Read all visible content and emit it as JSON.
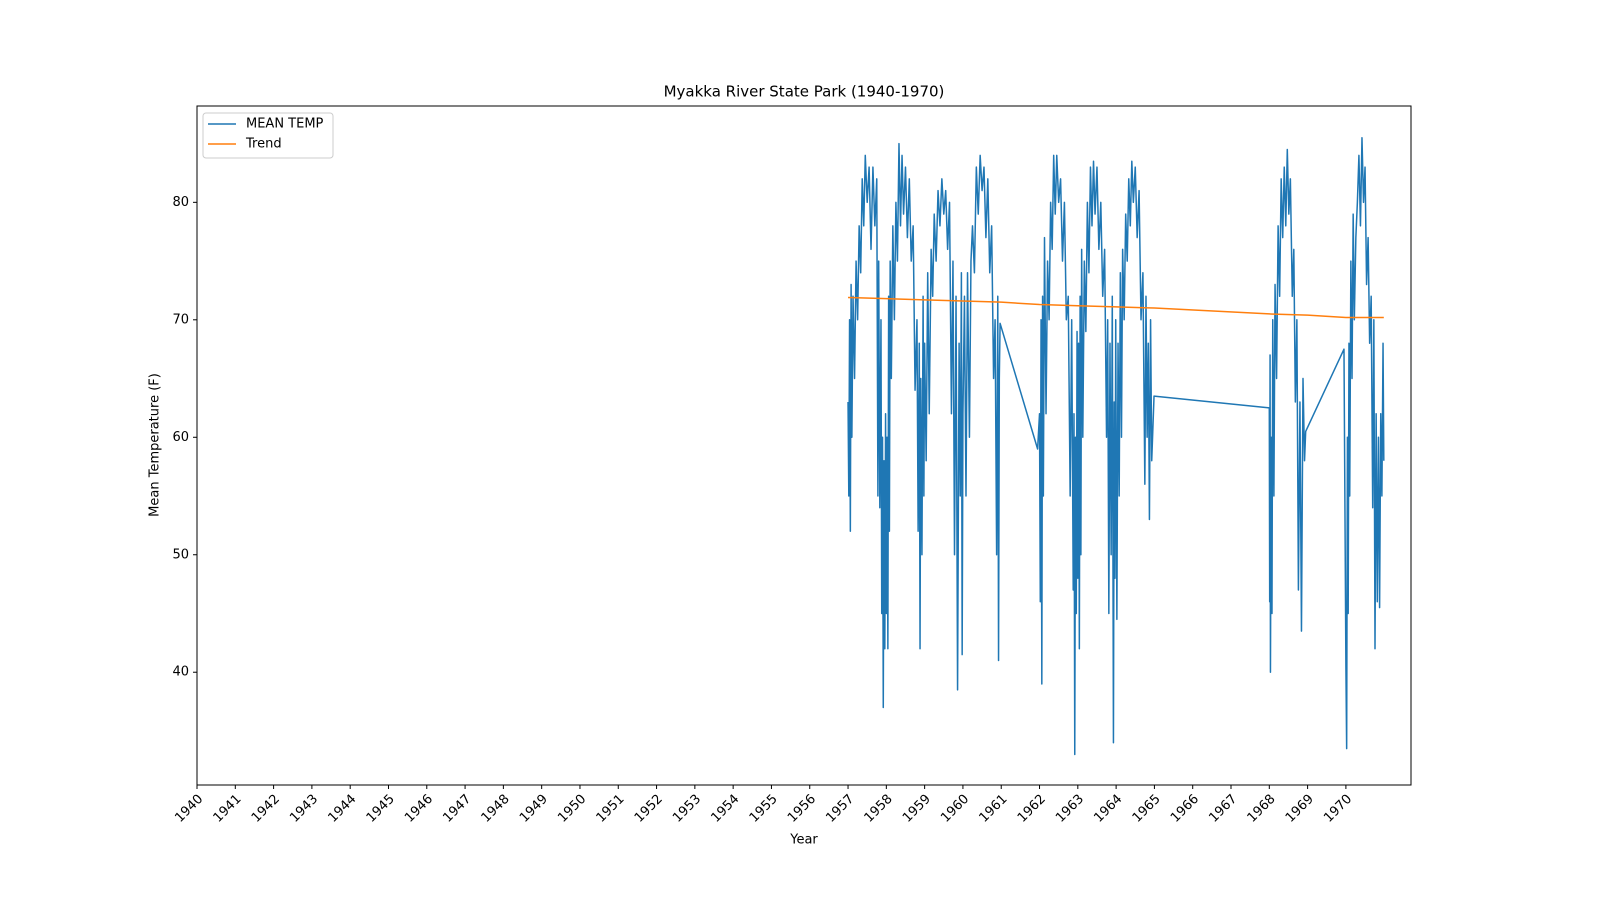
{
  "chart_data": {
    "type": "line",
    "title": "Myakka River State Park (1940-1970)",
    "xlabel": "Year",
    "ylabel": "Mean Temperature (F)",
    "xlim": [
      1940,
      1971.7
    ],
    "ylim": [
      30.4,
      88.2
    ],
    "xticks": [
      1940,
      1941,
      1942,
      1943,
      1944,
      1945,
      1946,
      1947,
      1948,
      1949,
      1950,
      1951,
      1952,
      1953,
      1954,
      1955,
      1956,
      1957,
      1958,
      1959,
      1960,
      1961,
      1962,
      1963,
      1964,
      1965,
      1966,
      1967,
      1968,
      1969,
      1970
    ],
    "yticks": [
      40,
      50,
      60,
      70,
      80
    ],
    "legend": "upper left",
    "series": [
      {
        "name": "MEAN TEMP",
        "color": "#1f77b4",
        "x": [
          1957.0,
          1957.02,
          1957.04,
          1957.06,
          1957.08,
          1957.1,
          1957.13,
          1957.17,
          1957.21,
          1957.25,
          1957.29,
          1957.33,
          1957.37,
          1957.41,
          1957.45,
          1957.5,
          1957.55,
          1957.6,
          1957.65,
          1957.7,
          1957.75,
          1957.78,
          1957.8,
          1957.83,
          1957.86,
          1957.88,
          1957.9,
          1957.92,
          1957.94,
          1957.96,
          1957.98,
          1958.0,
          1958.02,
          1958.04,
          1958.06,
          1958.08,
          1958.1,
          1958.13,
          1958.17,
          1958.21,
          1958.25,
          1958.29,
          1958.33,
          1958.37,
          1958.41,
          1958.45,
          1958.5,
          1958.55,
          1958.6,
          1958.65,
          1958.7,
          1958.75,
          1958.8,
          1958.83,
          1958.86,
          1958.88,
          1958.9,
          1958.93,
          1958.96,
          1958.98,
          1959.0,
          1959.04,
          1959.08,
          1959.12,
          1959.17,
          1959.21,
          1959.25,
          1959.3,
          1959.35,
          1959.4,
          1959.45,
          1959.5,
          1959.55,
          1959.6,
          1959.65,
          1959.7,
          1959.74,
          1959.78,
          1959.82,
          1959.86,
          1959.9,
          1959.93,
          1959.96,
          1959.98,
          1960.0,
          1960.04,
          1960.08,
          1960.12,
          1960.17,
          1960.21,
          1960.25,
          1960.3,
          1960.35,
          1960.4,
          1960.45,
          1960.5,
          1960.55,
          1960.6,
          1960.65,
          1960.7,
          1960.75,
          1960.8,
          1960.84,
          1960.88,
          1960.91,
          1960.93,
          1960.95,
          1960.97,
          1961.95,
          1962.0,
          1962.02,
          1962.04,
          1962.06,
          1962.08,
          1962.1,
          1962.13,
          1962.17,
          1962.21,
          1962.25,
          1962.29,
          1962.33,
          1962.37,
          1962.41,
          1962.45,
          1962.5,
          1962.55,
          1962.6,
          1962.65,
          1962.7,
          1962.75,
          1962.8,
          1962.84,
          1962.88,
          1962.9,
          1962.92,
          1962.94,
          1962.96,
          1962.98,
          1963.0,
          1963.02,
          1963.04,
          1963.06,
          1963.08,
          1963.1,
          1963.13,
          1963.17,
          1963.21,
          1963.25,
          1963.29,
          1963.33,
          1963.37,
          1963.41,
          1963.45,
          1963.5,
          1963.55,
          1963.6,
          1963.65,
          1963.7,
          1963.75,
          1963.78,
          1963.81,
          1963.84,
          1963.87,
          1963.9,
          1963.93,
          1963.95,
          1963.97,
          1963.99,
          1964.02,
          1964.05,
          1964.08,
          1964.11,
          1964.14,
          1964.17,
          1964.21,
          1964.25,
          1964.29,
          1964.33,
          1964.37,
          1964.41,
          1964.45,
          1964.5,
          1964.55,
          1964.6,
          1964.65,
          1964.7,
          1964.75,
          1964.78,
          1964.81,
          1964.84,
          1964.87,
          1964.9,
          1964.93,
          1964.99,
          1968.0,
          1968.01,
          1968.02,
          1968.03,
          1968.05,
          1968.07,
          1968.09,
          1968.12,
          1968.15,
          1968.19,
          1968.23,
          1968.27,
          1968.31,
          1968.35,
          1968.39,
          1968.43,
          1968.47,
          1968.51,
          1968.55,
          1968.6,
          1968.64,
          1968.68,
          1968.72,
          1968.76,
          1968.8,
          1968.84,
          1968.88,
          1968.92,
          1968.95,
          1969.95,
          1970.0,
          1970.02,
          1970.04,
          1970.06,
          1970.08,
          1970.1,
          1970.13,
          1970.16,
          1970.19,
          1970.22,
          1970.26,
          1970.3,
          1970.34,
          1970.38,
          1970.42,
          1970.46,
          1970.5,
          1970.54,
          1970.58,
          1970.62,
          1970.66,
          1970.7,
          1970.73,
          1970.76,
          1970.79,
          1970.82,
          1970.85,
          1970.88,
          1970.91,
          1970.94,
          1970.97,
          1970.99
        ],
        "values": [
          63,
          55,
          70,
          52,
          73,
          60,
          72,
          65,
          75,
          70,
          78,
          74,
          82,
          78,
          84,
          80,
          83,
          76,
          83,
          78,
          82,
          55,
          75,
          54,
          70,
          45,
          60,
          37,
          58,
          42,
          62,
          45,
          60,
          42,
          72,
          52,
          75,
          65,
          78,
          70,
          80,
          75,
          85,
          78,
          84,
          79,
          83,
          77,
          82,
          75,
          78,
          64,
          70,
          52,
          68,
          42,
          65,
          50,
          72,
          55,
          68,
          58,
          74,
          62,
          76,
          72,
          79,
          75,
          81,
          78,
          82,
          79,
          81,
          76,
          80,
          62,
          75,
          50,
          72,
          38.5,
          68,
          55,
          74,
          41.5,
          62,
          72,
          55,
          74,
          60,
          75,
          78,
          74,
          83,
          79,
          84,
          81,
          83,
          77,
          82,
          74,
          78,
          65,
          70,
          50,
          72,
          41,
          65,
          69.7,
          59,
          62,
          46,
          70,
          39,
          72,
          55,
          77,
          62,
          75,
          70,
          80,
          76,
          84,
          79,
          84,
          80,
          82,
          75,
          80,
          70,
          72,
          55,
          70,
          47,
          62,
          33,
          60,
          45,
          69,
          48,
          68,
          42,
          72,
          50,
          76,
          60,
          75,
          69,
          80,
          74,
          83,
          78,
          83.5,
          79,
          83,
          76,
          80,
          72,
          76,
          60,
          70,
          45,
          68,
          50,
          72,
          34,
          63,
          48,
          70,
          44.5,
          68,
          55,
          74,
          60,
          76,
          70,
          79,
          75,
          82,
          78,
          83.5,
          80,
          83,
          77,
          81,
          70,
          74,
          56,
          72,
          60,
          68,
          53,
          70,
          58,
          63.5,
          62.5,
          46,
          67,
          40,
          60,
          45,
          70,
          55,
          73,
          65,
          78,
          72,
          82,
          77,
          83,
          78,
          84.5,
          79,
          82,
          72,
          76,
          63,
          70,
          47,
          63,
          43.5,
          65,
          58,
          60.5,
          67.5,
          40.5,
          33.5,
          60,
          45,
          68,
          55,
          75,
          65,
          79,
          70,
          77,
          80,
          84,
          78,
          85.5,
          80,
          83,
          73,
          77,
          68,
          72,
          54,
          70,
          42,
          62,
          46,
          60,
          45.5,
          62,
          55,
          68,
          58
        ]
      },
      {
        "name": "Trend",
        "color": "#ff7f0e",
        "x": [
          1957.0,
          1958.0,
          1959.0,
          1960.0,
          1961.0,
          1962.0,
          1963.0,
          1964.0,
          1965.0,
          1968.0,
          1969.0,
          1970.0,
          1970.99
        ],
        "values": [
          71.9,
          71.8,
          71.7,
          71.6,
          71.5,
          71.3,
          71.2,
          71.1,
          71.0,
          70.5,
          70.4,
          70.2,
          70.2
        ]
      }
    ]
  }
}
